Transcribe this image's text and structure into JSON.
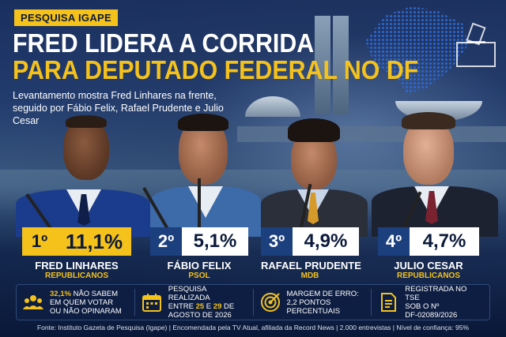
{
  "header": {
    "tag": "PESQUISA IGAPE",
    "title_line1": "FRED LIDERA A CORRIDA",
    "title_line2": "PARA DEPUTADO FEDERAL NO DF",
    "subtitle": "Levantamento mostra Fred Linhares na frente, seguido por Fábio Felix, Rafael Prudente e Julio Cesar"
  },
  "colors": {
    "accent": "#f5c21b",
    "navy": "#0b1a3a",
    "rank_blue": "#1c3f7e",
    "white": "#ffffff"
  },
  "candidates": [
    {
      "rank": "1º",
      "percent": "11,1%",
      "percent_value": 11.1,
      "name": "FRED LINHARES",
      "party": "REPUBLICANOS"
    },
    {
      "rank": "2º",
      "percent": "5,1%",
      "percent_value": 5.1,
      "name": "FÁBIO FELIX",
      "party": "PSOL"
    },
    {
      "rank": "3º",
      "percent": "4,9%",
      "percent_value": 4.9,
      "name": "RAFAEL PRUDENTE",
      "party": "MDB"
    },
    {
      "rank": "4º",
      "percent": "4,7%",
      "percent_value": 4.7,
      "name": "JULIO CESAR",
      "party": "REPUBLICANOS"
    }
  ],
  "info": {
    "undecided_pct": "32,1%",
    "undecided_text_a": " NÃO SABEM",
    "undecided_text_b": "EM QUEM VOTAR",
    "undecided_text_c": "OU NÃO OPINARAM",
    "survey_a": "PESQUISA REALIZADA",
    "survey_b_pre": "ENTRE ",
    "survey_b_d1": "25",
    "survey_b_mid": " E ",
    "survey_b_d2": "29",
    "survey_b_post": " DE",
    "survey_c": "AGOSTO DE 2026",
    "margin_a": "MARGEM DE ERRO:",
    "margin_b": "2,2 PONTOS",
    "margin_c": "PERCENTUAIS",
    "tse_a": "REGISTRADA NO TSE",
    "tse_b": "SOB O Nº",
    "tse_c": "DF-02089/2026",
    "icons": [
      "people-icon",
      "calendar-icon",
      "target-icon",
      "document-icon"
    ]
  },
  "footer": {
    "source": "Fonte: Instituto Gazeta de Pesquisa (Igape) | Encomendada pela TV Atual, afiliada da Record News | 2.000 entrevistas | Nível de confiança: 95%"
  }
}
